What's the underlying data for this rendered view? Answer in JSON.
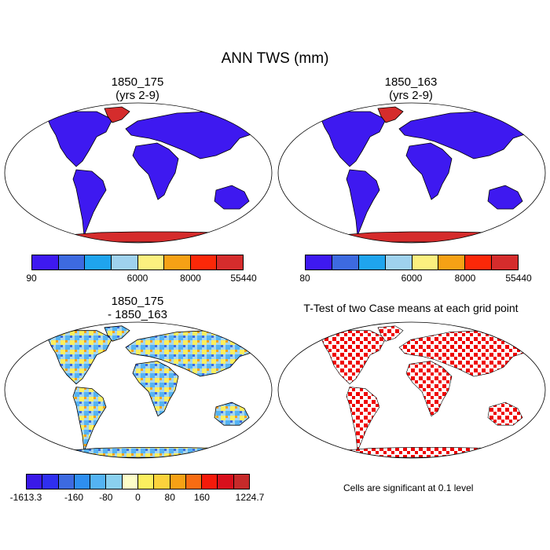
{
  "title": "ANN TWS (mm)",
  "panels": {
    "p1": {
      "title_line1": "1850_175",
      "title_line2": "(yrs 2-9)"
    },
    "p2": {
      "title_line1": "1850_163",
      "title_line2": "(yrs 2-9)"
    },
    "p3": {
      "title_line1": "1850_175",
      "title_line2": "- 1850_163"
    },
    "p4": {
      "title_line1": "T-Test of two Case means at each grid point",
      "note": "Cells are significant at 0.1 level"
    }
  },
  "colorbars": {
    "cb1": {
      "colors": [
        "#3e19f0",
        "#3d6ae0",
        "#1fa4ee",
        "#9fd2ee",
        "#fbf07f",
        "#f6a115",
        "#fb2808",
        "#d52c2c"
      ],
      "labels": [
        "90",
        "6000",
        "8000",
        "55440"
      ],
      "label_bounds": [
        0,
        4,
        6,
        8
      ]
    },
    "cb2": {
      "colors": [
        "#3e19f0",
        "#3d6ae0",
        "#1fa4ee",
        "#9fd2ee",
        "#fbf07f",
        "#f6a115",
        "#fb2808",
        "#d52c2c"
      ],
      "labels": [
        "80",
        "6000",
        "8000",
        "55440"
      ],
      "label_bounds": [
        0,
        4,
        6,
        8
      ]
    },
    "cb3": {
      "colors": [
        "#3a19e8",
        "#2f2ff0",
        "#3d6ae0",
        "#2e8ef0",
        "#54b3f3",
        "#8ad0ef",
        "#fdfdc8",
        "#fbef5f",
        "#fbd23c",
        "#f6a115",
        "#f86c12",
        "#f51a0a",
        "#d80f1c",
        "#c62a2a"
      ],
      "labels": [
        "-1613.3",
        "-160",
        "-80",
        "0",
        "80",
        "160",
        "1224.7"
      ],
      "label_bounds": [
        0,
        3,
        5,
        7,
        9,
        11,
        14
      ]
    }
  },
  "colors": {
    "land_main": "#3e19f0",
    "land_high": "#d52c2c",
    "sig_cells": "#ef0000",
    "diff_base": "#a6d6ef"
  }
}
